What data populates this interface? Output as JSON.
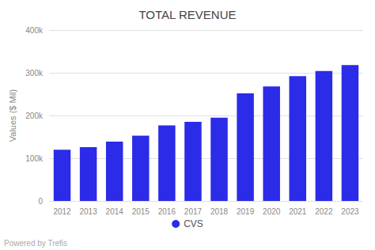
{
  "chart_data": {
    "type": "bar",
    "title": "TOTAL REVENUE",
    "ylabel": "Values ($ Mil)",
    "categories": [
      "2012",
      "2013",
      "2014",
      "2015",
      "2016",
      "2017",
      "2018",
      "2019",
      "2020",
      "2021",
      "2022",
      "2023"
    ],
    "series": [
      {
        "name": "CVS",
        "color": "#2b2be8",
        "values": [
          120000,
          126000,
          139000,
          153000,
          177000,
          185000,
          195000,
          252000,
          268000,
          292000,
          304000,
          318000
        ]
      }
    ],
    "ylim": [
      0,
      400000
    ],
    "yticks": [
      0,
      {
        "value": 100000,
        "label": "100k"
      },
      {
        "value": 200000,
        "label": "200k"
      },
      {
        "value": 300000,
        "label": "300k"
      },
      {
        "value": 400000,
        "label": "400k"
      }
    ],
    "grid": true,
    "legend": "bottom",
    "annotations": [
      "Powered by Trefis"
    ]
  }
}
